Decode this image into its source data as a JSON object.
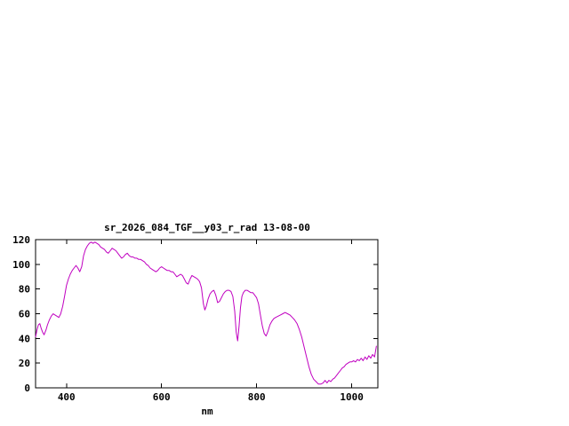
{
  "window": {
    "background": "#ffffff"
  },
  "chart": {
    "title": "sr_2026_084_TGF__y03_r_rad 13-08-00",
    "xlabel": "nm",
    "line_color": "#c000c0",
    "frame_color": "#000000",
    "text_color": "#000000"
  },
  "chart_data": {
    "type": "line",
    "title": "sr_2026_084_TGF__y03_r_rad 13-08-00",
    "xlabel": "nm",
    "ylabel": "",
    "xlim": [
      335,
      1055
    ],
    "ylim": [
      0,
      120
    ],
    "x_ticks": [
      400,
      600,
      800,
      1000
    ],
    "y_ticks": [
      0,
      20,
      40,
      60,
      80,
      100,
      120
    ],
    "grid": false,
    "legend": "none",
    "series": [
      {
        "name": "sr_2026_084_TGF__y03_r_rad",
        "color": "#c000c0",
        "points": [
          [
            335,
            41
          ],
          [
            338,
            47
          ],
          [
            341,
            51
          ],
          [
            344,
            52
          ],
          [
            347,
            48
          ],
          [
            350,
            45
          ],
          [
            353,
            43
          ],
          [
            357,
            47
          ],
          [
            360,
            51
          ],
          [
            364,
            55
          ],
          [
            368,
            58
          ],
          [
            372,
            60
          ],
          [
            376,
            59
          ],
          [
            380,
            58
          ],
          [
            384,
            57
          ],
          [
            388,
            60
          ],
          [
            392,
            66
          ],
          [
            396,
            74
          ],
          [
            400,
            83
          ],
          [
            404,
            88
          ],
          [
            408,
            92
          ],
          [
            412,
            95
          ],
          [
            416,
            97
          ],
          [
            420,
            99
          ],
          [
            424,
            97
          ],
          [
            428,
            94
          ],
          [
            432,
            98
          ],
          [
            436,
            107
          ],
          [
            440,
            112
          ],
          [
            444,
            115
          ],
          [
            448,
            117
          ],
          [
            452,
            118
          ],
          [
            456,
            117
          ],
          [
            460,
            118
          ],
          [
            464,
            117
          ],
          [
            468,
            116
          ],
          [
            472,
            114
          ],
          [
            476,
            113
          ],
          [
            480,
            112
          ],
          [
            484,
            110
          ],
          [
            488,
            109
          ],
          [
            492,
            111
          ],
          [
            496,
            113
          ],
          [
            500,
            112
          ],
          [
            504,
            111
          ],
          [
            508,
            109
          ],
          [
            512,
            107
          ],
          [
            516,
            105
          ],
          [
            520,
            106
          ],
          [
            524,
            108
          ],
          [
            528,
            109
          ],
          [
            532,
            107
          ],
          [
            536,
            106
          ],
          [
            540,
            106
          ],
          [
            544,
            105
          ],
          [
            548,
            105
          ],
          [
            552,
            104
          ],
          [
            556,
            104
          ],
          [
            560,
            103
          ],
          [
            564,
            102
          ],
          [
            568,
            100
          ],
          [
            572,
            99
          ],
          [
            576,
            97
          ],
          [
            580,
            96
          ],
          [
            584,
            95
          ],
          [
            588,
            94
          ],
          [
            592,
            95
          ],
          [
            596,
            97
          ],
          [
            600,
            98
          ],
          [
            604,
            97
          ],
          [
            608,
            96
          ],
          [
            612,
            95
          ],
          [
            616,
            95
          ],
          [
            620,
            94
          ],
          [
            624,
            94
          ],
          [
            628,
            92
          ],
          [
            632,
            90
          ],
          [
            636,
            91
          ],
          [
            640,
            92
          ],
          [
            644,
            91
          ],
          [
            648,
            88
          ],
          [
            652,
            85
          ],
          [
            656,
            84
          ],
          [
            660,
            88
          ],
          [
            664,
            91
          ],
          [
            668,
            90
          ],
          [
            672,
            89
          ],
          [
            676,
            88
          ],
          [
            680,
            86
          ],
          [
            684,
            81
          ],
          [
            688,
            68
          ],
          [
            691,
            63
          ],
          [
            694,
            66
          ],
          [
            698,
            72
          ],
          [
            702,
            76
          ],
          [
            706,
            78
          ],
          [
            710,
            79
          ],
          [
            714,
            75
          ],
          [
            718,
            69
          ],
          [
            722,
            70
          ],
          [
            726,
            73
          ],
          [
            730,
            76
          ],
          [
            734,
            78
          ],
          [
            738,
            79
          ],
          [
            742,
            79
          ],
          [
            746,
            78
          ],
          [
            750,
            74
          ],
          [
            754,
            62
          ],
          [
            757,
            45
          ],
          [
            760,
            38
          ],
          [
            763,
            50
          ],
          [
            766,
            65
          ],
          [
            769,
            74
          ],
          [
            772,
            77
          ],
          [
            776,
            79
          ],
          [
            780,
            79
          ],
          [
            784,
            78
          ],
          [
            788,
            77
          ],
          [
            792,
            77
          ],
          [
            796,
            75
          ],
          [
            800,
            73
          ],
          [
            804,
            68
          ],
          [
            808,
            59
          ],
          [
            812,
            50
          ],
          [
            816,
            44
          ],
          [
            820,
            42
          ],
          [
            824,
            46
          ],
          [
            828,
            51
          ],
          [
            832,
            54
          ],
          [
            836,
            56
          ],
          [
            840,
            57
          ],
          [
            845,
            58
          ],
          [
            850,
            59
          ],
          [
            855,
            60
          ],
          [
            860,
            61
          ],
          [
            865,
            60
          ],
          [
            870,
            59
          ],
          [
            875,
            57
          ],
          [
            880,
            55
          ],
          [
            885,
            52
          ],
          [
            890,
            47
          ],
          [
            895,
            41
          ],
          [
            900,
            33
          ],
          [
            905,
            25
          ],
          [
            910,
            17
          ],
          [
            915,
            11
          ],
          [
            920,
            7
          ],
          [
            925,
            5
          ],
          [
            930,
            3
          ],
          [
            935,
            3
          ],
          [
            940,
            4
          ],
          [
            944,
            6
          ],
          [
            948,
            4
          ],
          [
            952,
            6
          ],
          [
            956,
            5
          ],
          [
            960,
            7
          ],
          [
            964,
            8
          ],
          [
            968,
            10
          ],
          [
            972,
            12
          ],
          [
            976,
            14
          ],
          [
            980,
            16
          ],
          [
            984,
            17
          ],
          [
            988,
            19
          ],
          [
            992,
            20
          ],
          [
            996,
            21
          ],
          [
            1000,
            21
          ],
          [
            1004,
            22
          ],
          [
            1008,
            21
          ],
          [
            1012,
            23
          ],
          [
            1016,
            22
          ],
          [
            1020,
            24
          ],
          [
            1024,
            22
          ],
          [
            1028,
            25
          ],
          [
            1032,
            23
          ],
          [
            1036,
            26
          ],
          [
            1040,
            24
          ],
          [
            1044,
            27
          ],
          [
            1048,
            25
          ],
          [
            1052,
            34
          ]
        ]
      }
    ]
  }
}
